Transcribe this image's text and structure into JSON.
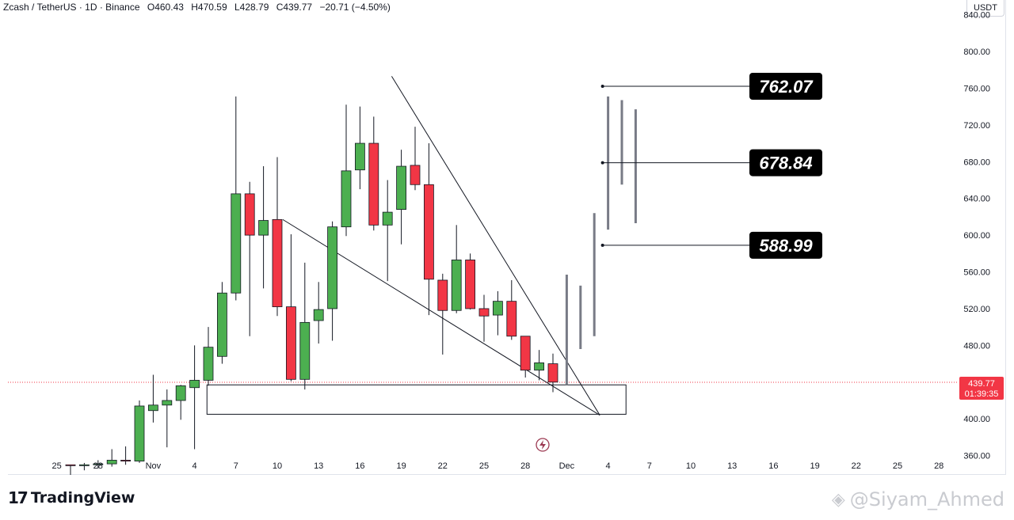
{
  "header": {
    "symbol": "Zcash / TetherUS · 1D · Binance",
    "open": "O460.43",
    "high": "H470.59",
    "low": "L428.79",
    "close": "C439.77",
    "change": "−20.71 (−4.50%)"
  },
  "currency": "USDT",
  "last_price": {
    "value": "439.77",
    "countdown": "01:39:35",
    "color": "#f23645"
  },
  "footer": {
    "logo_mark": "17",
    "logo_text": "TradingView"
  },
  "watermark": {
    "text": "@Siyam_Ahmed"
  },
  "targets": [
    {
      "label": "762.07",
      "value": 762.07
    },
    {
      "label": "678.84",
      "value": 678.84
    },
    {
      "label": "588.99",
      "value": 588.99
    }
  ],
  "chart_data": {
    "type": "candlestick",
    "colors": {
      "up": "#4caf50",
      "down": "#f23645",
      "wick": "#131722",
      "projection": "#787b86"
    },
    "y_axis": {
      "ticks": [
        360,
        400,
        440,
        480,
        520,
        560,
        600,
        640,
        680,
        720,
        760,
        800,
        840
      ],
      "tick_labels": [
        "360.00",
        "400.00",
        "440.00",
        "480.00",
        "520.00",
        "560.00",
        "600.00",
        "640.00",
        "680.00",
        "720.00",
        "760.00",
        "800.00",
        "840.00"
      ],
      "range": [
        339,
        856
      ]
    },
    "x_axis": {
      "labels": [
        {
          "day": -6,
          "text": "25"
        },
        {
          "day": -3,
          "text": "28"
        },
        {
          "day": 1,
          "text": "Nov"
        },
        {
          "day": 4,
          "text": "4"
        },
        {
          "day": 7,
          "text": "7"
        },
        {
          "day": 10,
          "text": "10"
        },
        {
          "day": 13,
          "text": "13"
        },
        {
          "day": 16,
          "text": "16"
        },
        {
          "day": 19,
          "text": "19"
        },
        {
          "day": 22,
          "text": "22"
        },
        {
          "day": 25,
          "text": "25"
        },
        {
          "day": 28,
          "text": "28"
        },
        {
          "day": 31,
          "text": "Dec"
        },
        {
          "day": 34,
          "text": "4"
        },
        {
          "day": 37,
          "text": "7"
        },
        {
          "day": 40,
          "text": "10"
        },
        {
          "day": 43,
          "text": "13"
        },
        {
          "day": 46,
          "text": "16"
        },
        {
          "day": 49,
          "text": "19"
        },
        {
          "day": 52,
          "text": "22"
        },
        {
          "day": 55,
          "text": "25"
        },
        {
          "day": 58,
          "text": "28"
        }
      ]
    },
    "candles": [
      {
        "day": -5,
        "o": 350,
        "h": 350,
        "l": 338,
        "c": 349
      },
      {
        "day": -4,
        "o": 349,
        "h": 352,
        "l": 344,
        "c": 350
      },
      {
        "day": -3,
        "o": 350,
        "h": 355,
        "l": 346,
        "c": 351
      },
      {
        "day": -2,
        "o": 351,
        "h": 367,
        "l": 348,
        "c": 355
      },
      {
        "day": -1,
        "o": 355,
        "h": 370,
        "l": 350,
        "c": 354
      },
      {
        "day": 0,
        "o": 354,
        "h": 420,
        "l": 352,
        "c": 414
      },
      {
        "day": 1,
        "o": 409,
        "h": 448,
        "l": 396,
        "c": 415
      },
      {
        "day": 2,
        "o": 415,
        "h": 432,
        "l": 369,
        "c": 420
      },
      {
        "day": 3,
        "o": 420,
        "h": 437,
        "l": 399,
        "c": 436
      },
      {
        "day": 4,
        "o": 434,
        "h": 480,
        "l": 367,
        "c": 442
      },
      {
        "day": 5,
        "o": 442,
        "h": 500,
        "l": 436,
        "c": 478
      },
      {
        "day": 6,
        "o": 468,
        "h": 549,
        "l": 460,
        "c": 537
      },
      {
        "day": 7,
        "o": 537,
        "h": 751,
        "l": 529,
        "c": 645
      },
      {
        "day": 8,
        "o": 645,
        "h": 658,
        "l": 490,
        "c": 600
      },
      {
        "day": 9,
        "o": 600,
        "h": 675,
        "l": 542,
        "c": 616
      },
      {
        "day": 10,
        "o": 617,
        "h": 685,
        "l": 512,
        "c": 522
      },
      {
        "day": 11,
        "o": 522,
        "h": 601,
        "l": 441,
        "c": 443
      },
      {
        "day": 12,
        "o": 443,
        "h": 570,
        "l": 432,
        "c": 505
      },
      {
        "day": 13,
        "o": 507,
        "h": 549,
        "l": 482,
        "c": 519
      },
      {
        "day": 14,
        "o": 520,
        "h": 615,
        "l": 485,
        "c": 609
      },
      {
        "day": 15,
        "o": 609,
        "h": 742,
        "l": 599,
        "c": 670
      },
      {
        "day": 16,
        "o": 671,
        "h": 740,
        "l": 650,
        "c": 700
      },
      {
        "day": 17,
        "o": 700,
        "h": 729,
        "l": 605,
        "c": 611
      },
      {
        "day": 18,
        "o": 611,
        "h": 660,
        "l": 550,
        "c": 625
      },
      {
        "day": 19,
        "o": 628,
        "h": 693,
        "l": 590,
        "c": 675
      },
      {
        "day": 20,
        "o": 676,
        "h": 718,
        "l": 649,
        "c": 655
      },
      {
        "day": 21,
        "o": 655,
        "h": 700,
        "l": 513,
        "c": 552
      },
      {
        "day": 22,
        "o": 551,
        "h": 558,
        "l": 470,
        "c": 518
      },
      {
        "day": 23,
        "o": 518,
        "h": 611,
        "l": 515,
        "c": 573
      },
      {
        "day": 24,
        "o": 573,
        "h": 580,
        "l": 519,
        "c": 520
      },
      {
        "day": 25,
        "o": 520,
        "h": 535,
        "l": 484,
        "c": 512
      },
      {
        "day": 26,
        "o": 513,
        "h": 539,
        "l": 491,
        "c": 528
      },
      {
        "day": 27,
        "o": 528,
        "h": 551,
        "l": 486,
        "c": 490
      },
      {
        "day": 28,
        "o": 490,
        "h": 490,
        "l": 445,
        "c": 453
      },
      {
        "day": 29,
        "o": 453,
        "h": 475,
        "l": 442,
        "c": 461
      },
      {
        "day": 30,
        "o": 460,
        "h": 471,
        "l": 429,
        "c": 440
      }
    ],
    "projection_bars": [
      {
        "day": 31,
        "low": 437,
        "high": 557
      },
      {
        "day": 32,
        "low": 476,
        "high": 545
      },
      {
        "day": 33,
        "low": 490,
        "high": 624
      },
      {
        "day": 34,
        "low": 606,
        "high": 751
      },
      {
        "day": 35,
        "low": 655,
        "high": 747
      },
      {
        "day": 36,
        "low": 613,
        "high": 737
      }
    ],
    "support_zone": {
      "from_day": 4.9,
      "to_day": 35.3,
      "low": 405,
      "high": 437
    },
    "trendlines": [
      {
        "day1": 18.3,
        "v1": 773,
        "day2": 33.4,
        "v2": 404
      },
      {
        "day1": 10.4,
        "v1": 617,
        "day2": 33.4,
        "v2": 404
      }
    ],
    "target_line_start_day": 33.6
  }
}
